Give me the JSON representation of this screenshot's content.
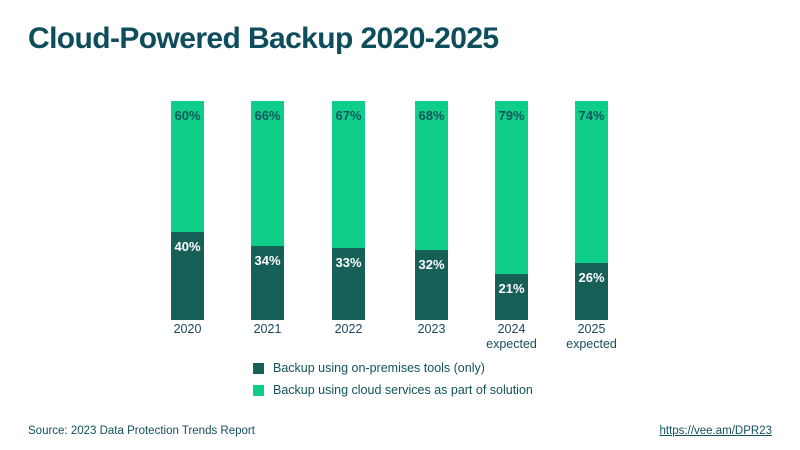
{
  "header": {
    "title": "Cloud-Powered Backup 2020-2025"
  },
  "chart_data": {
    "type": "bar",
    "stacked": true,
    "orientation": "vertical",
    "title": "Cloud-Powered Backup 2020-2025",
    "value_suffix": "%",
    "ylim": [
      0,
      100
    ],
    "grid": false,
    "axes_shown": false,
    "legend_position": "bottom-center",
    "categories": [
      {
        "label": "2020",
        "sublabel": ""
      },
      {
        "label": "2021",
        "sublabel": ""
      },
      {
        "label": "2022",
        "sublabel": ""
      },
      {
        "label": "2023",
        "sublabel": ""
      },
      {
        "label": "2024",
        "sublabel": "expected"
      },
      {
        "label": "2025",
        "sublabel": "expected"
      }
    ],
    "series": [
      {
        "name": "Backup using on-premises tools (only)",
        "color": "#166058",
        "position": "bottom",
        "values": [
          40,
          34,
          33,
          32,
          21,
          26
        ]
      },
      {
        "name": "Backup using cloud services as part of solution",
        "color": "#0ece8a",
        "position": "top",
        "values": [
          60,
          66,
          67,
          68,
          79,
          74
        ]
      }
    ]
  },
  "colors": {
    "accent_green": "#0ece8a",
    "accent_dark_teal": "#166058",
    "ink": "#114e5c",
    "background": "#ffffff"
  },
  "footer": {
    "source": "Source: 2023 Data Protection Trends Report",
    "link": "https://vee.am/DPR23"
  }
}
